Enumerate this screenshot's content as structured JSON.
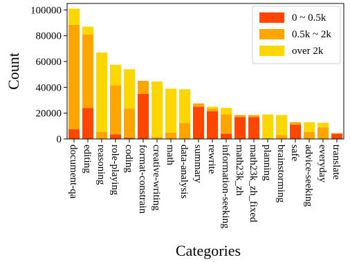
{
  "chart_data": {
    "type": "bar",
    "stacked": true,
    "xlabel": "Categories",
    "ylabel": "Count",
    "ylim": [
      0,
      105000
    ],
    "yticks": [
      0,
      20000,
      40000,
      60000,
      80000,
      100000
    ],
    "ytick_labels": [
      "0",
      "20000",
      "40000",
      "60000",
      "80000",
      "100000"
    ],
    "legend_position": "top-right",
    "categories": [
      "document-qa",
      "editing",
      "reasoning",
      "role-playing",
      "coding",
      "format-constrain",
      "creative-writing",
      "math",
      "data-analysis",
      "summary",
      "rewrite",
      "information-seeking",
      "math23k_zh",
      "math23k_zh_fixed",
      "planning",
      "brainstorming",
      "safe",
      "advice-seeking",
      "everyday",
      "translate"
    ],
    "series": [
      {
        "name": "0 ~ 0.5k",
        "color": "#ff4500",
        "values": [
          7500,
          24000,
          0,
          3500,
          1000,
          35000,
          0,
          0,
          0,
          25000,
          21500,
          4000,
          17000,
          17000,
          0,
          0,
          11000,
          0,
          0,
          4000
        ]
      },
      {
        "name": "0.5k ~ 2k",
        "color": "#ffa500",
        "values": [
          81000,
          57000,
          5500,
          38000,
          22500,
          10000,
          1500,
          5000,
          12500,
          2500,
          2000,
          15000,
          1500,
          1500,
          500,
          3000,
          2000,
          5500,
          9000,
          500
        ]
      },
      {
        "name": "over 2k",
        "color": "#ffd700",
        "values": [
          12500,
          6000,
          61500,
          16000,
          30500,
          0,
          43000,
          34000,
          26000,
          0,
          1500,
          5000,
          0,
          0,
          18500,
          15500,
          0,
          7500,
          3500,
          0
        ]
      }
    ]
  }
}
